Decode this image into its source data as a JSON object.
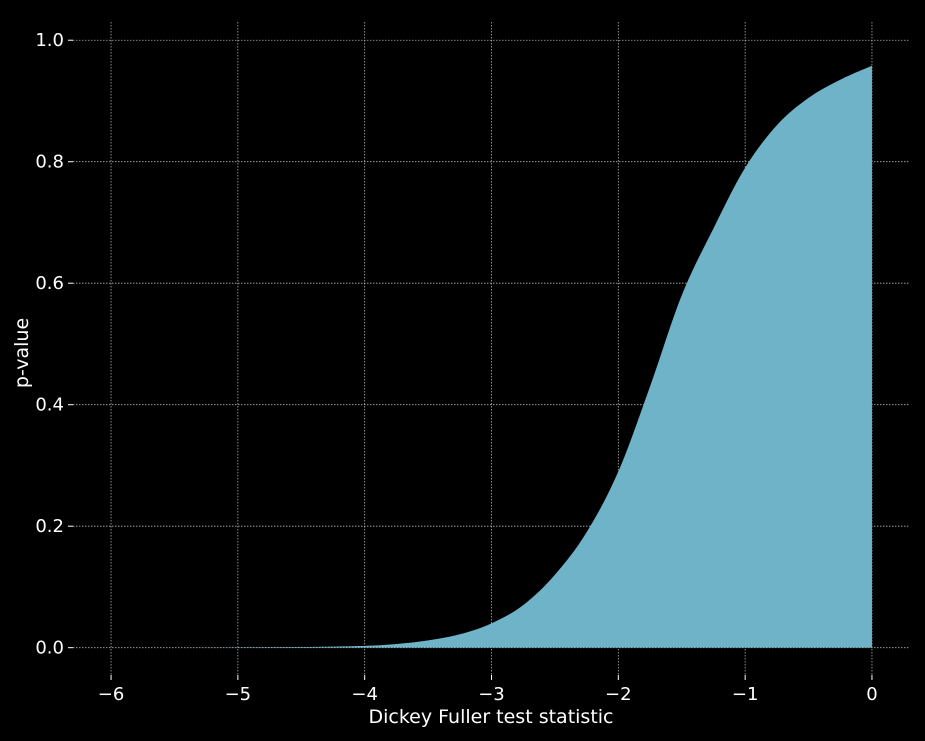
{
  "chart_data": {
    "type": "area",
    "title": "",
    "xlabel": "Dickey Fuller test statistic",
    "ylabel": "p-value",
    "xlim": [
      -6.3,
      0.3
    ],
    "ylim": [
      -0.045,
      1.03
    ],
    "xticks": [
      -6,
      -5,
      -4,
      -3,
      -2,
      -1,
      0
    ],
    "xtick_labels": [
      "−6",
      "−5",
      "−4",
      "−3",
      "−2",
      "−1",
      "0"
    ],
    "yticks": [
      0.0,
      0.2,
      0.4,
      0.6,
      0.8,
      1.0
    ],
    "ytick_labels": [
      "0.0",
      "0.2",
      "0.4",
      "0.6",
      "0.8",
      "1.0"
    ],
    "grid": true,
    "series": [
      {
        "x": [
          -6.0,
          -5.5,
          -5.0,
          -4.5,
          -4.0,
          -3.75,
          -3.5,
          -3.25,
          -3.0,
          -2.75,
          -2.5,
          -2.25,
          -2.0,
          -1.75,
          -1.5,
          -1.25,
          -1.0,
          -0.75,
          -0.5,
          -0.25,
          0.0
        ],
        "y": [
          0.0,
          0.0,
          0.0005,
          0.001,
          0.003,
          0.006,
          0.012,
          0.022,
          0.04,
          0.07,
          0.12,
          0.19,
          0.29,
          0.43,
          0.58,
          0.69,
          0.79,
          0.86,
          0.905,
          0.935,
          0.958
        ],
        "fill": "#6fb3c9"
      }
    ]
  }
}
